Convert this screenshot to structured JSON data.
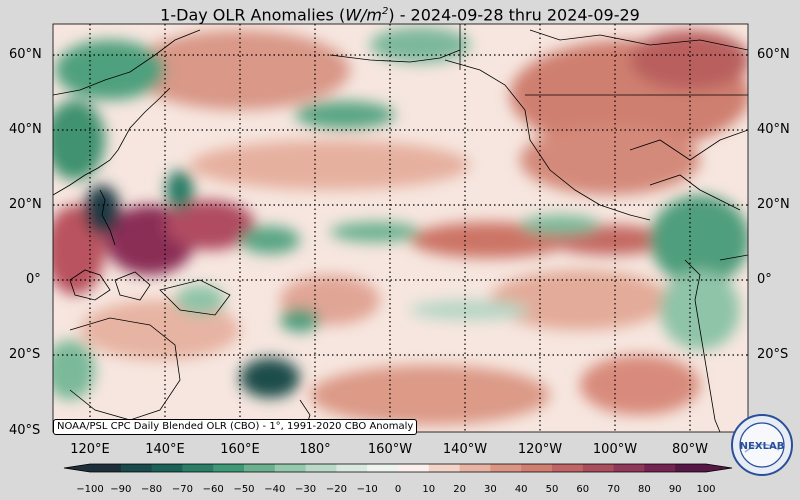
{
  "title": {
    "prefix": "1-Day OLR Anomalies (",
    "unit_base": "W/m",
    "unit_exp": "2",
    "suffix": ") - 2024-09-28 thru 2024-09-29"
  },
  "caption": "NOAA/PSL CPC Daily Blended OLR (CBO) - 1°, 1991-2020 CBO Anomaly",
  "lat_labels": [
    "60°N",
    "40°N",
    "20°N",
    "0°",
    "20°S",
    "40°S"
  ],
  "lon_labels": [
    "120°E",
    "140°E",
    "160°E",
    "180°",
    "160°W",
    "140°W",
    "120°W",
    "100°W",
    "80°W"
  ],
  "colorbar": {
    "ticks": [
      "−100",
      "−90",
      "−80",
      "−70",
      "−60",
      "−50",
      "−40",
      "−30",
      "−20",
      "−10",
      "0",
      "10",
      "20",
      "30",
      "40",
      "50",
      "60",
      "70",
      "80",
      "90",
      "100"
    ],
    "colors": [
      "#1c2f3a",
      "#1b4a4c",
      "#1a6258",
      "#2b7d66",
      "#3f9876",
      "#6bb18f",
      "#95c9ad",
      "#bad9c8",
      "#d9e9df",
      "#f0f4f1",
      "#fbf0ec",
      "#f3d4c9",
      "#e8b3a3",
      "#dc9585",
      "#d07e6f",
      "#c06466",
      "#aa4e5e",
      "#90385a",
      "#742451",
      "#561746"
    ]
  },
  "logo": {
    "text": "NEXLAB",
    "ring_text": "COLLEGE OF DUPAGE"
  },
  "colors": {
    "background": "#d9d9d9",
    "ocean_neutral": "#f8ebe6",
    "positive": "#c46e66",
    "negative": "#3d9272"
  }
}
